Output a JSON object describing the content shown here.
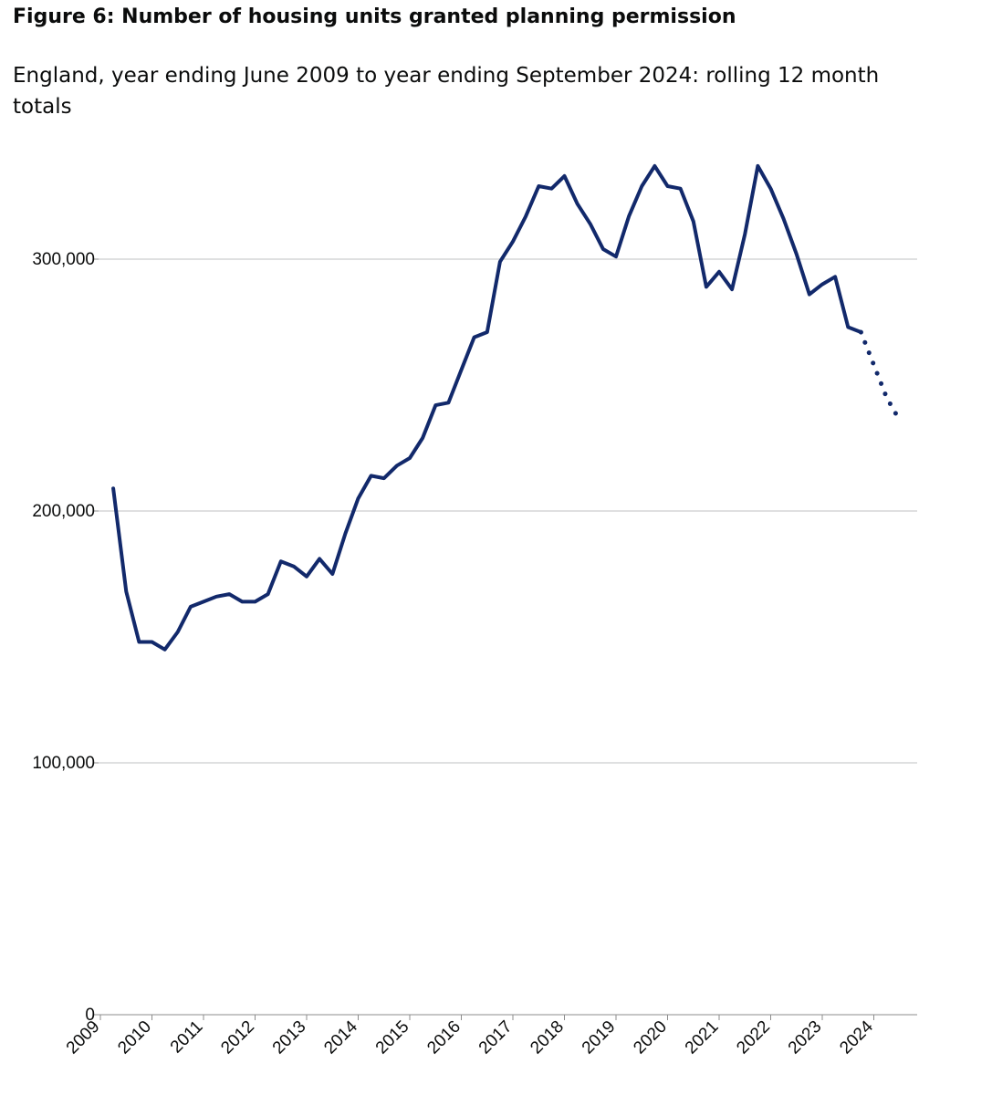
{
  "figure": {
    "title": "Figure 6: Number of housing units granted planning permission",
    "subtitle": "England, year ending June 2009 to year ending September 2024: rolling 12 month totals"
  },
  "colors": {
    "line": "#12296b",
    "grid": "#bfc1c3",
    "axis": "#8c8c8c",
    "text": "#0b0c0c"
  },
  "chart_data": {
    "type": "line",
    "title": "Figure 6: Number of housing units granted planning permission",
    "subtitle": "England, year ending June 2009 to year ending September 2024: rolling 12 month totals",
    "xlabel": "",
    "ylabel": "",
    "x_ticks": [
      "2009",
      "2010",
      "2011",
      "2012",
      "2013",
      "2014",
      "2015",
      "2016",
      "2017",
      "2018",
      "2019",
      "2020",
      "2021",
      "2022",
      "2023",
      "2024"
    ],
    "y_ticks": [
      0,
      100000,
      200000,
      300000
    ],
    "y_tick_labels": [
      "0",
      "100,000",
      "200,000",
      "300,000"
    ],
    "ylim": [
      0,
      300000
    ],
    "grid": true,
    "series": [
      {
        "style": "solid",
        "x": [
          "2009-Q2",
          "2009-Q3",
          "2009-Q4",
          "2010-Q1",
          "2010-Q2",
          "2010-Q3",
          "2010-Q4",
          "2011-Q1",
          "2011-Q2",
          "2011-Q3",
          "2011-Q4",
          "2012-Q1",
          "2012-Q2",
          "2012-Q3",
          "2012-Q4",
          "2013-Q1",
          "2013-Q2",
          "2013-Q3",
          "2013-Q4",
          "2014-Q1",
          "2014-Q2",
          "2014-Q3",
          "2014-Q4",
          "2015-Q1",
          "2015-Q2",
          "2015-Q3",
          "2015-Q4",
          "2016-Q1",
          "2016-Q2",
          "2016-Q3",
          "2016-Q4",
          "2017-Q1",
          "2017-Q2",
          "2017-Q3",
          "2017-Q4",
          "2018-Q1",
          "2018-Q2",
          "2018-Q3",
          "2018-Q4",
          "2019-Q1",
          "2019-Q2",
          "2019-Q3",
          "2019-Q4",
          "2020-Q1",
          "2020-Q2",
          "2020-Q3",
          "2020-Q4",
          "2021-Q1",
          "2021-Q2",
          "2021-Q3",
          "2021-Q4",
          "2022-Q1",
          "2022-Q2",
          "2022-Q3",
          "2022-Q4",
          "2023-Q1",
          "2023-Q2",
          "2023-Q3",
          "2023-Q4"
        ],
        "values": [
          209000,
          168000,
          148000,
          148000,
          145000,
          152000,
          162000,
          164000,
          166000,
          167000,
          164000,
          164000,
          167000,
          180000,
          178000,
          174000,
          181000,
          175000,
          191000,
          205000,
          214000,
          213000,
          218000,
          221000,
          229000,
          242000,
          243000,
          256000,
          269000,
          271000,
          299000,
          307000,
          317000,
          329000,
          328000,
          333000,
          322000,
          314000,
          304000,
          301000,
          317000,
          329000,
          337000,
          329000,
          328000,
          315000,
          289000,
          295000,
          288000,
          310000,
          337000,
          328000,
          316000,
          302000,
          286000,
          290000,
          293000,
          273000,
          271000
        ]
      },
      {
        "style": "dotted",
        "x": [
          "2023-Q4",
          "2024-Q1",
          "2024-Q2",
          "2024-Q3"
        ],
        "values": [
          271000,
          258000,
          245000,
          236000
        ]
      }
    ]
  }
}
